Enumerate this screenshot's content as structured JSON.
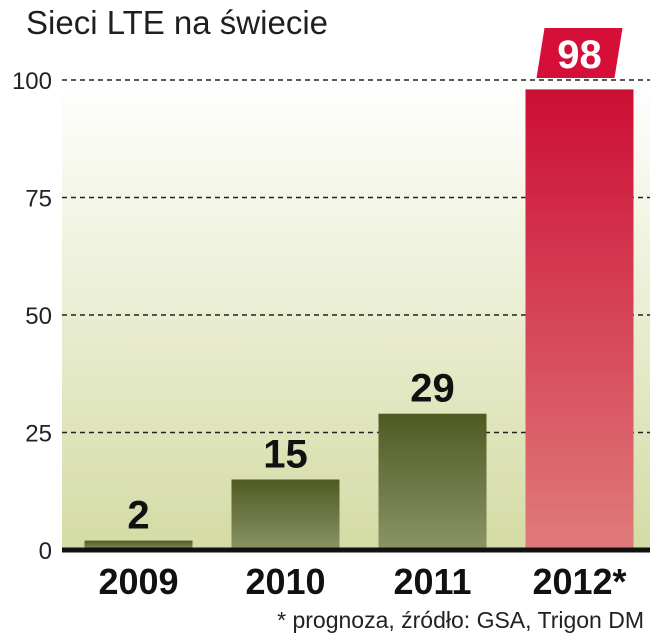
{
  "chart_data": {
    "type": "bar",
    "title": "Sieci LTE na świecie",
    "categories": [
      "2009",
      "2010",
      "2011",
      "2012*"
    ],
    "values": [
      2,
      15,
      29,
      98
    ],
    "data_labels": [
      "2",
      "15",
      "29",
      "98"
    ],
    "ylim": [
      0,
      100
    ],
    "yticks": [
      "0",
      "25",
      "50",
      "75",
      "100"
    ],
    "ytick_values": [
      0,
      25,
      50,
      75,
      100
    ],
    "grid": true,
    "highlight_index": 3,
    "footnote": "* prognoza, źródło: GSA, Trigon DM",
    "colors": {
      "bar_top": "#4f5a22",
      "bar_bottom": "#8a9466",
      "highlight_top": "#cc0e35",
      "highlight_bottom": "#e07b7b",
      "highlight_label_bg": "#d60f38",
      "bg_top": "#ffffff",
      "bg_bottom": "#d4dba4"
    }
  }
}
